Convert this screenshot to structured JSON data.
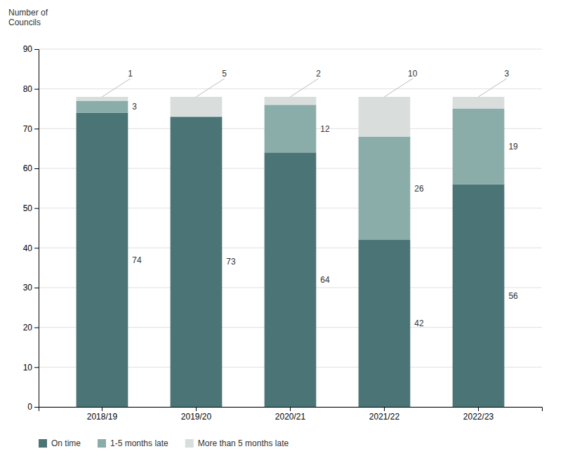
{
  "chart_data": {
    "type": "bar",
    "stacked": true,
    "y_label": "Number of\nCouncils",
    "categories": [
      "2018/19",
      "2019/20",
      "2020/21",
      "2021/22",
      "2022/23"
    ],
    "series": [
      {
        "name": "On time",
        "color": "#4a7475",
        "values": [
          74,
          73,
          64,
          42,
          56
        ]
      },
      {
        "name": "1-5 months late",
        "color": "#8aadaa",
        "values": [
          3,
          0,
          12,
          26,
          19
        ]
      },
      {
        "name": "More than 5 months late",
        "color": "#d9dedd",
        "values": [
          1,
          5,
          2,
          10,
          3
        ]
      }
    ],
    "ylim": [
      0,
      90
    ],
    "yticks": [
      0,
      10,
      20,
      30,
      40,
      50,
      60,
      70,
      80,
      90
    ],
    "grid": true,
    "legend": "bottom",
    "data_labels": true
  }
}
